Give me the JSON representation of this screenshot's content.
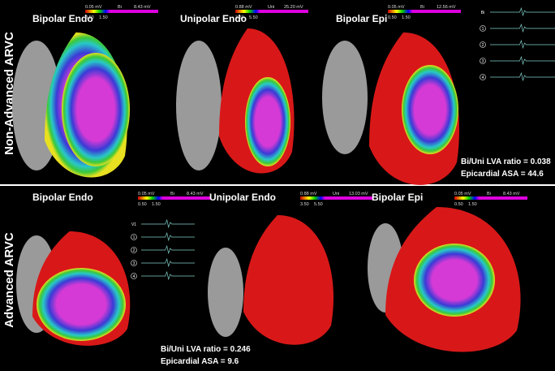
{
  "figure": {
    "rows": [
      {
        "label": "Non-Advanced ARVC",
        "panels": [
          {
            "title": "Bipolar Endo",
            "colorbar": {
              "min": "0.05 mV",
              "name": "Bi",
              "max": "8.43 mV",
              "low": "0.50",
              "high": "1.50"
            }
          },
          {
            "title": "Unipolar Endo",
            "colorbar": {
              "min": "0.88 mV",
              "name": "Uni",
              "max": "25.20 mV",
              "low": "3.50",
              "high": "5.50"
            }
          },
          {
            "title": "Bipolar Epi",
            "colorbar": {
              "min": "0.05 mV",
              "name": "Bi",
              "max": "12.56 mV",
              "low": "0.50",
              "high": "1.50"
            }
          }
        ],
        "traces": [
          "Bi",
          "1",
          "2",
          "3",
          "4"
        ],
        "annotations": [
          "Bi/Uni LVA ratio =  0.038",
          "Epicardial ASA = 44.6"
        ]
      },
      {
        "label": "Advanced ARVC",
        "panels": [
          {
            "title": "Bipolar Endo",
            "colorbar": {
              "min": "0.05 mV",
              "name": "Bi",
              "max": "8.43 mV",
              "low": "0.50",
              "high": "1.50"
            }
          },
          {
            "title": "Unipolar Endo",
            "colorbar": {
              "min": "0.88 mV",
              "name": "Uni",
              "max": "13.03 mV",
              "low": "3.50",
              "high": "5.50"
            }
          },
          {
            "title": "Bipolar Epi",
            "colorbar": {
              "min": "0.05 mV",
              "name": "Bi",
              "max": "8.43 mV",
              "low": "0.50",
              "high": "1.50"
            }
          }
        ],
        "traces": [
          "V1",
          "1",
          "2",
          "3",
          "4"
        ],
        "annotations": [
          "Bi/Uni LVA ratio =  0.246",
          "Epicardial ASA = 9.6"
        ]
      }
    ]
  }
}
